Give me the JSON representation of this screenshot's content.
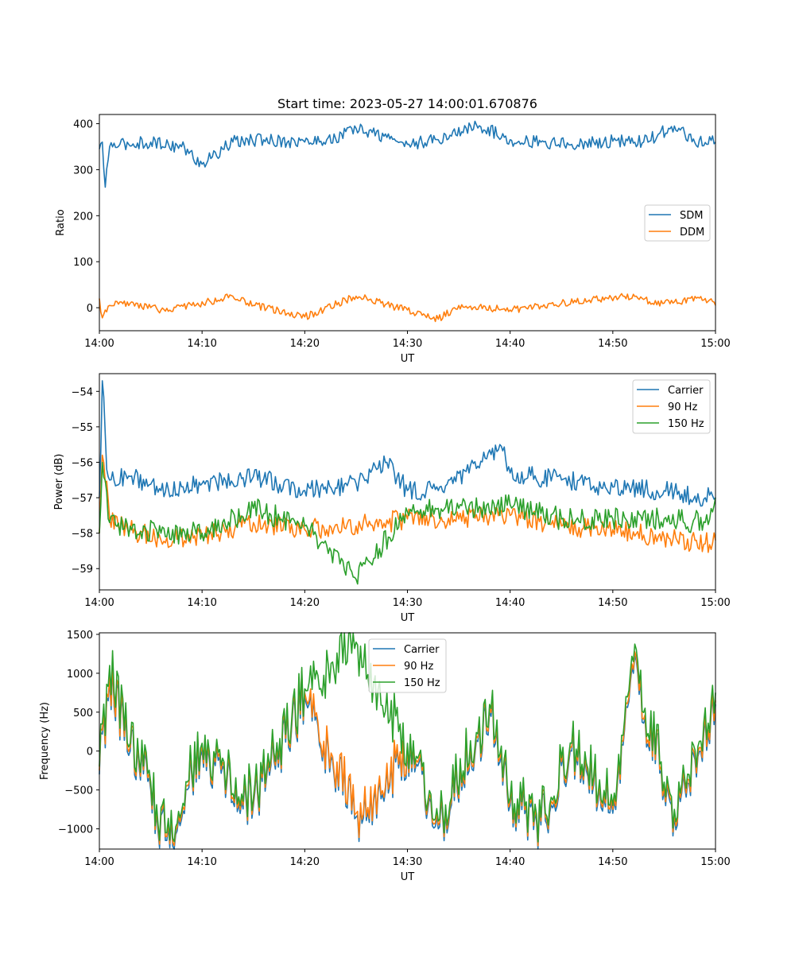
{
  "figure_title": "Start time: 2023-05-27 14:00:01.670876",
  "colors": {
    "blue": "#1f77b4",
    "orange": "#ff7f0e",
    "green": "#2ca02c"
  },
  "chart_data": [
    {
      "type": "line",
      "title": "Start time: 2023-05-27 14:00:01.670876",
      "xlabel": "UT",
      "ylabel": "Ratio",
      "x_ticks": [
        "14:00",
        "14:10",
        "14:20",
        "14:30",
        "14:40",
        "14:50",
        "15:00"
      ],
      "y_ticks": [
        0,
        100,
        200,
        300,
        400
      ],
      "xlim": [
        "14:00",
        "15:00"
      ],
      "ylim": [
        -50,
        420
      ],
      "grid": false,
      "legend_position": "center-right",
      "series": [
        {
          "name": "SDM",
          "color": "#1f77b4",
          "x": [
            "14:00",
            "14:00:15",
            "14:00:30",
            "14:01",
            "14:02",
            "14:05",
            "14:08",
            "14:10",
            "14:13",
            "14:16",
            "14:20",
            "14:23",
            "14:25",
            "14:28",
            "14:30",
            "14:33",
            "14:36:45",
            "14:40",
            "14:43",
            "14:46",
            "14:50",
            "14:53",
            "14:56",
            "14:58",
            "15:00"
          ],
          "values": [
            345,
            360,
            262,
            350,
            355,
            360,
            350,
            312,
            360,
            365,
            360,
            368,
            390,
            370,
            355,
            365,
            398,
            365,
            360,
            355,
            362,
            360,
            395,
            358,
            360
          ]
        },
        {
          "name": "DDM",
          "color": "#ff7f0e",
          "x": [
            "14:00",
            "14:00:15",
            "14:01",
            "14:03",
            "14:06",
            "14:09",
            "14:13",
            "14:15",
            "14:20",
            "14:25",
            "14:30",
            "14:33",
            "14:35",
            "14:40",
            "14:45",
            "14:51",
            "14:55",
            "14:59",
            "15:00"
          ],
          "values": [
            20,
            -22,
            5,
            10,
            -5,
            5,
            25,
            5,
            -20,
            25,
            -5,
            -25,
            5,
            -5,
            10,
            25,
            10,
            20,
            5
          ]
        }
      ]
    },
    {
      "type": "line",
      "xlabel": "UT",
      "ylabel": "Power (dB)",
      "x_ticks": [
        "14:00",
        "14:10",
        "14:20",
        "14:30",
        "14:40",
        "14:50",
        "15:00"
      ],
      "y_ticks": [
        -59,
        -58,
        -57,
        -56,
        -55,
        -54
      ],
      "xlim": [
        "14:00",
        "15:00"
      ],
      "ylim": [
        -59.6,
        -53.5
      ],
      "grid": false,
      "legend_position": "upper-right",
      "series": [
        {
          "name": "Carrier",
          "color": "#1f77b4",
          "x": [
            "14:00",
            "14:00:20",
            "14:00:40",
            "14:01",
            "14:03",
            "14:06",
            "14:10",
            "14:15",
            "14:20",
            "14:25",
            "14:28",
            "14:30",
            "14:33",
            "14:36",
            "14:39",
            "14:40",
            "14:45",
            "14:50",
            "14:55",
            "14:59",
            "15:00"
          ],
          "values": [
            -57.0,
            -53.7,
            -56.2,
            -56.5,
            -56.4,
            -56.8,
            -56.6,
            -56.4,
            -56.8,
            -56.6,
            -56.0,
            -56.8,
            -56.8,
            -56.3,
            -55.5,
            -56.3,
            -56.5,
            -56.7,
            -56.8,
            -57.0,
            -57.0
          ]
        },
        {
          "name": "90 Hz",
          "color": "#ff7f0e",
          "x": [
            "14:00",
            "14:00:20",
            "14:01",
            "14:03",
            "14:06",
            "14:10",
            "14:15",
            "14:20",
            "14:25",
            "14:30",
            "14:35",
            "14:40",
            "14:45",
            "14:50",
            "14:55",
            "14:59",
            "15:00"
          ],
          "values": [
            -58.0,
            -55.8,
            -57.6,
            -57.9,
            -58.2,
            -58.1,
            -57.7,
            -57.9,
            -57.8,
            -57.6,
            -57.6,
            -57.5,
            -57.8,
            -57.9,
            -58.1,
            -58.3,
            -58.2
          ]
        },
        {
          "name": "150 Hz",
          "color": "#2ca02c",
          "x": [
            "14:00",
            "14:00:20",
            "14:01",
            "14:03",
            "14:06",
            "14:10",
            "14:15",
            "14:20",
            "14:25",
            "14:30",
            "14:35",
            "14:40",
            "14:45",
            "14:50",
            "14:55",
            "14:59",
            "15:00"
          ],
          "values": [
            -58.0,
            -56.0,
            -57.7,
            -57.8,
            -58.0,
            -58.0,
            -57.3,
            -57.8,
            -59.3,
            -57.4,
            -57.3,
            -57.2,
            -57.6,
            -57.6,
            -57.6,
            -57.7,
            -57.0
          ]
        }
      ]
    },
    {
      "type": "line",
      "xlabel": "UT",
      "ylabel": "Frequency (Hz)",
      "x_ticks": [
        "14:00",
        "14:10",
        "14:20",
        "14:30",
        "14:40",
        "14:50",
        "15:00"
      ],
      "y_ticks": [
        -1000,
        -500,
        0,
        500,
        1000,
        1500
      ],
      "xlim": [
        "14:00",
        "15:00"
      ],
      "ylim": [
        -1260,
        1520
      ],
      "grid": false,
      "legend_position": "upper-center",
      "series": [
        {
          "name": "Carrier",
          "color": "#1f77b4",
          "x": [
            "14:00",
            "14:01",
            "14:03",
            "14:05",
            "14:06:30",
            "14:10",
            "14:15",
            "14:20",
            "14:25",
            "14:30",
            "14:33",
            "14:38",
            "14:40",
            "14:43",
            "14:46",
            "14:50",
            "14:52",
            "14:56",
            "15:00"
          ],
          "values": [
            -300,
            900,
            0,
            -500,
            -1150,
            0,
            -700,
            700,
            -850,
            0,
            -1000,
            500,
            -700,
            -950,
            0,
            -800,
            1000,
            -850,
            600
          ]
        },
        {
          "name": "90 Hz",
          "color": "#ff7f0e",
          "x": [
            "14:00",
            "14:01",
            "14:03",
            "14:05",
            "14:06:30",
            "14:10",
            "14:15",
            "14:20",
            "14:25",
            "14:30",
            "14:33",
            "14:38",
            "14:40",
            "14:43",
            "14:46",
            "14:50",
            "14:52",
            "14:56",
            "15:00"
          ],
          "values": [
            -250,
            950,
            50,
            -450,
            -1100,
            50,
            -650,
            750,
            -800,
            50,
            -950,
            550,
            -650,
            -900,
            50,
            -750,
            1050,
            -800,
            650
          ]
        },
        {
          "name": "150 Hz",
          "color": "#2ca02c",
          "x": [
            "14:00",
            "14:01",
            "14:03",
            "14:05",
            "14:06:30",
            "14:10",
            "14:15",
            "14:20",
            "14:25",
            "14:30",
            "14:33",
            "14:38",
            "14:40",
            "14:43",
            "14:46",
            "14:50",
            "14:52",
            "14:56",
            "15:00"
          ],
          "values": [
            -200,
            1100,
            100,
            -400,
            -1050,
            100,
            -600,
            800,
            1400,
            100,
            -900,
            600,
            -600,
            -850,
            100,
            -700,
            1150,
            -750,
            750
          ]
        }
      ]
    }
  ]
}
